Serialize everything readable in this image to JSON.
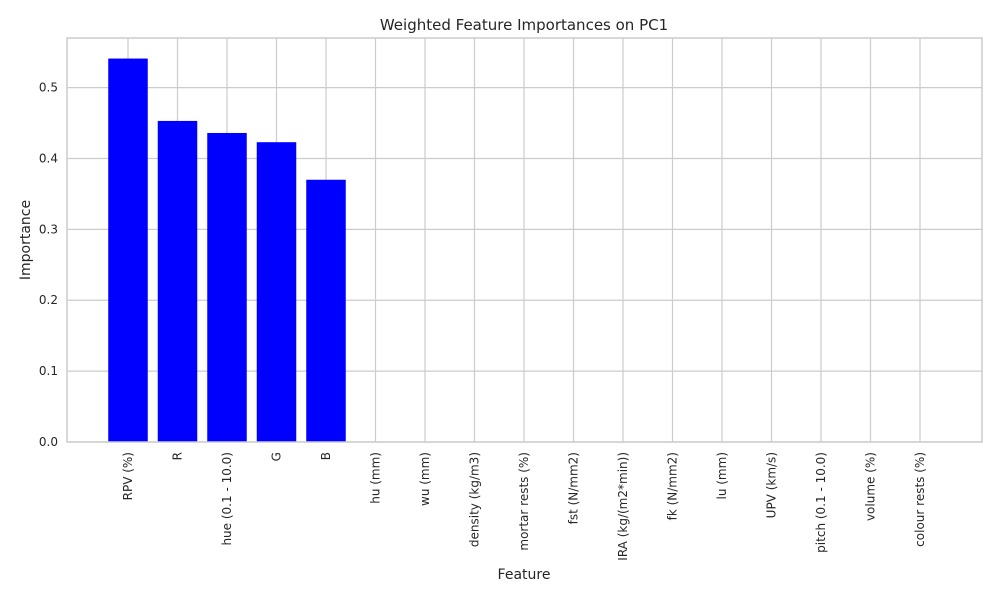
{
  "chart_data": {
    "type": "bar",
    "title": "Weighted Feature Importances on PC1",
    "xlabel": "Feature",
    "ylabel": "Importance",
    "categories": [
      "RPV (%)",
      "R",
      "hue (0.1 - 10.0)",
      "G",
      "B",
      "hu (mm)",
      "wu (mm)",
      "density (kg/m3)",
      "mortar rests (%)",
      "fst (N/mm2)",
      "IRA (kg/(m2*min))",
      "fk (N/mm2)",
      "lu (mm)",
      "UPV (km/s)",
      "pitch (0.1 - 10.0)",
      "volume (%)",
      "colour rests (%)"
    ],
    "values": [
      0.541,
      0.453,
      0.436,
      0.423,
      0.37,
      0,
      0,
      0,
      0,
      0,
      0,
      0,
      0,
      0,
      0,
      0,
      0
    ],
    "ylim": [
      0,
      0.57
    ],
    "yticks": [
      0.0,
      0.1,
      0.2,
      0.3,
      0.4,
      0.5
    ],
    "ytick_labels": [
      "0.0",
      "0.1",
      "0.2",
      "0.3",
      "0.4",
      "0.5"
    ],
    "grid": true,
    "bar_color": "#0000ff",
    "grid_color": "#cccccc"
  }
}
